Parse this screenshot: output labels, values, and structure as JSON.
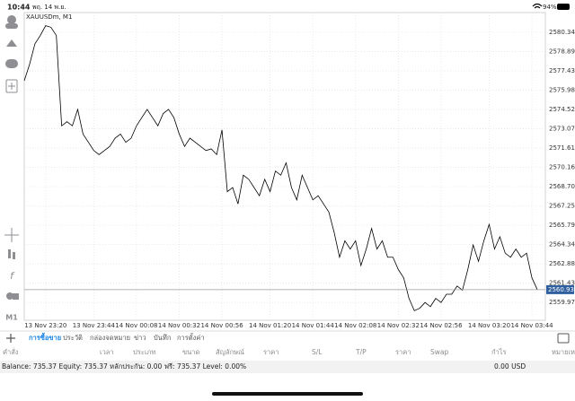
{
  "status_bar": {
    "time": "10:44",
    "date": "พฤ. 14 พ.ย.",
    "battery": "94%"
  },
  "chart_data": {
    "type": "line",
    "title": "XAUUSDm, M1",
    "timeframe": "M1",
    "color": "#000000",
    "grid": true,
    "categories": [
      null,
      null,
      null,
      null,
      "13 Nov 23:20",
      null,
      null,
      null,
      null,
      null,
      null,
      null,
      null,
      "13 Nov 23:44",
      null,
      null,
      null,
      null,
      null,
      null,
      null,
      "14 Nov 00:08",
      null,
      null,
      null,
      null,
      null,
      null,
      null,
      "14 Nov 00:32",
      null,
      null,
      null,
      null,
      null,
      null,
      null,
      "14 Nov 00:56",
      null,
      null,
      null,
      null,
      null,
      null,
      null,
      null,
      "14 Nov 01:20",
      null,
      null,
      null,
      null,
      null,
      null,
      null,
      "14 Nov 01:44",
      null,
      null,
      null,
      null,
      null,
      null,
      null,
      "14 Nov 02:08",
      null,
      null,
      null,
      null,
      null,
      null,
      null,
      "14 Nov 02:32",
      null,
      null,
      null,
      null,
      null,
      null,
      null,
      "14 Nov 02:56",
      null,
      null,
      null,
      null,
      null,
      null,
      null,
      null,
      "14 Nov 03:20",
      null,
      null,
      null,
      null,
      null,
      null,
      null,
      "14 Nov 03:44",
      null
    ],
    "values": [
      2576.69,
      2577.93,
      2579.48,
      2580.1,
      2580.84,
      2580.72,
      2580.1,
      2573.29,
      2573.6,
      2573.29,
      2574.53,
      2572.67,
      2572.05,
      2571.43,
      2571.12,
      2571.43,
      2571.74,
      2572.36,
      2572.67,
      2572.05,
      2572.36,
      2573.29,
      2573.91,
      2574.53,
      2573.91,
      2573.29,
      2574.22,
      2574.53,
      2573.91,
      2572.67,
      2571.74,
      2572.36,
      2572.05,
      2571.74,
      2571.43,
      2571.55,
      2571.12,
      2572.98,
      2568.33,
      2568.64,
      2567.4,
      2569.57,
      2569.26,
      2568.64,
      2568.02,
      2569.26,
      2568.33,
      2569.88,
      2569.57,
      2570.5,
      2568.64,
      2567.71,
      2569.57,
      2568.64,
      2567.71,
      2568.02,
      2567.4,
      2566.79,
      2565.24,
      2563.38,
      2564.62,
      2564.0,
      2564.62,
      2562.76,
      2564.0,
      2565.55,
      2564.0,
      2564.62,
      2563.38,
      2563.38,
      2562.45,
      2561.83,
      2560.28,
      2559.35,
      2559.54,
      2559.97,
      2559.66,
      2560.28,
      2559.97,
      2560.59,
      2560.59,
      2561.21,
      2560.9,
      2562.45,
      2564.31,
      2563.07,
      2564.62,
      2565.86,
      2564.0,
      2564.93,
      2563.69,
      2563.38,
      2564.0,
      2563.38,
      2563.69,
      2561.83,
      2560.94
    ],
    "current_price": 2560.937,
    "ylim": [
      2558.63,
      2581.83
    ],
    "yticks": [
      2580.345,
      {
        "value": 2578.89,
        "label": "2578.890"
      },
      2577.435,
      {
        "value": 2575.98,
        "label": "2575.980"
      },
      2574.525,
      {
        "value": 2573.07,
        "label": "2573.070"
      },
      2571.615,
      {
        "value": 2570.16,
        "label": "2570.160"
      },
      2568.705,
      {
        "value": 2567.25,
        "label": "2567.250"
      },
      2565.795,
      {
        "value": 2564.34,
        "label": "2564.340"
      },
      2562.885,
      {
        "value": 2561.43,
        "label": "2561.430"
      },
      2559.975
    ]
  },
  "tabs": [
    "การซื้อขาย",
    "ประวัติ",
    "กล่องจดหมาย",
    "ข่าว",
    "บันทึก",
    "การตั้งค่า"
  ],
  "active_tab": 0,
  "table_headers": [
    "คำสั่ง",
    "เวลา",
    "ประเภท",
    "ขนาด",
    "สัญลักษณ์",
    "ราคา",
    "S/L",
    "T/P",
    "ราคา",
    "Swap",
    "กำไร",
    "หมายเหตุ"
  ],
  "account": {
    "summary": "Balance: 735.37 Equity: 735.37 หลักประกัน: 0.00 ฟรี: 735.37 Level: 0.00%",
    "total": "0.00 USD"
  }
}
